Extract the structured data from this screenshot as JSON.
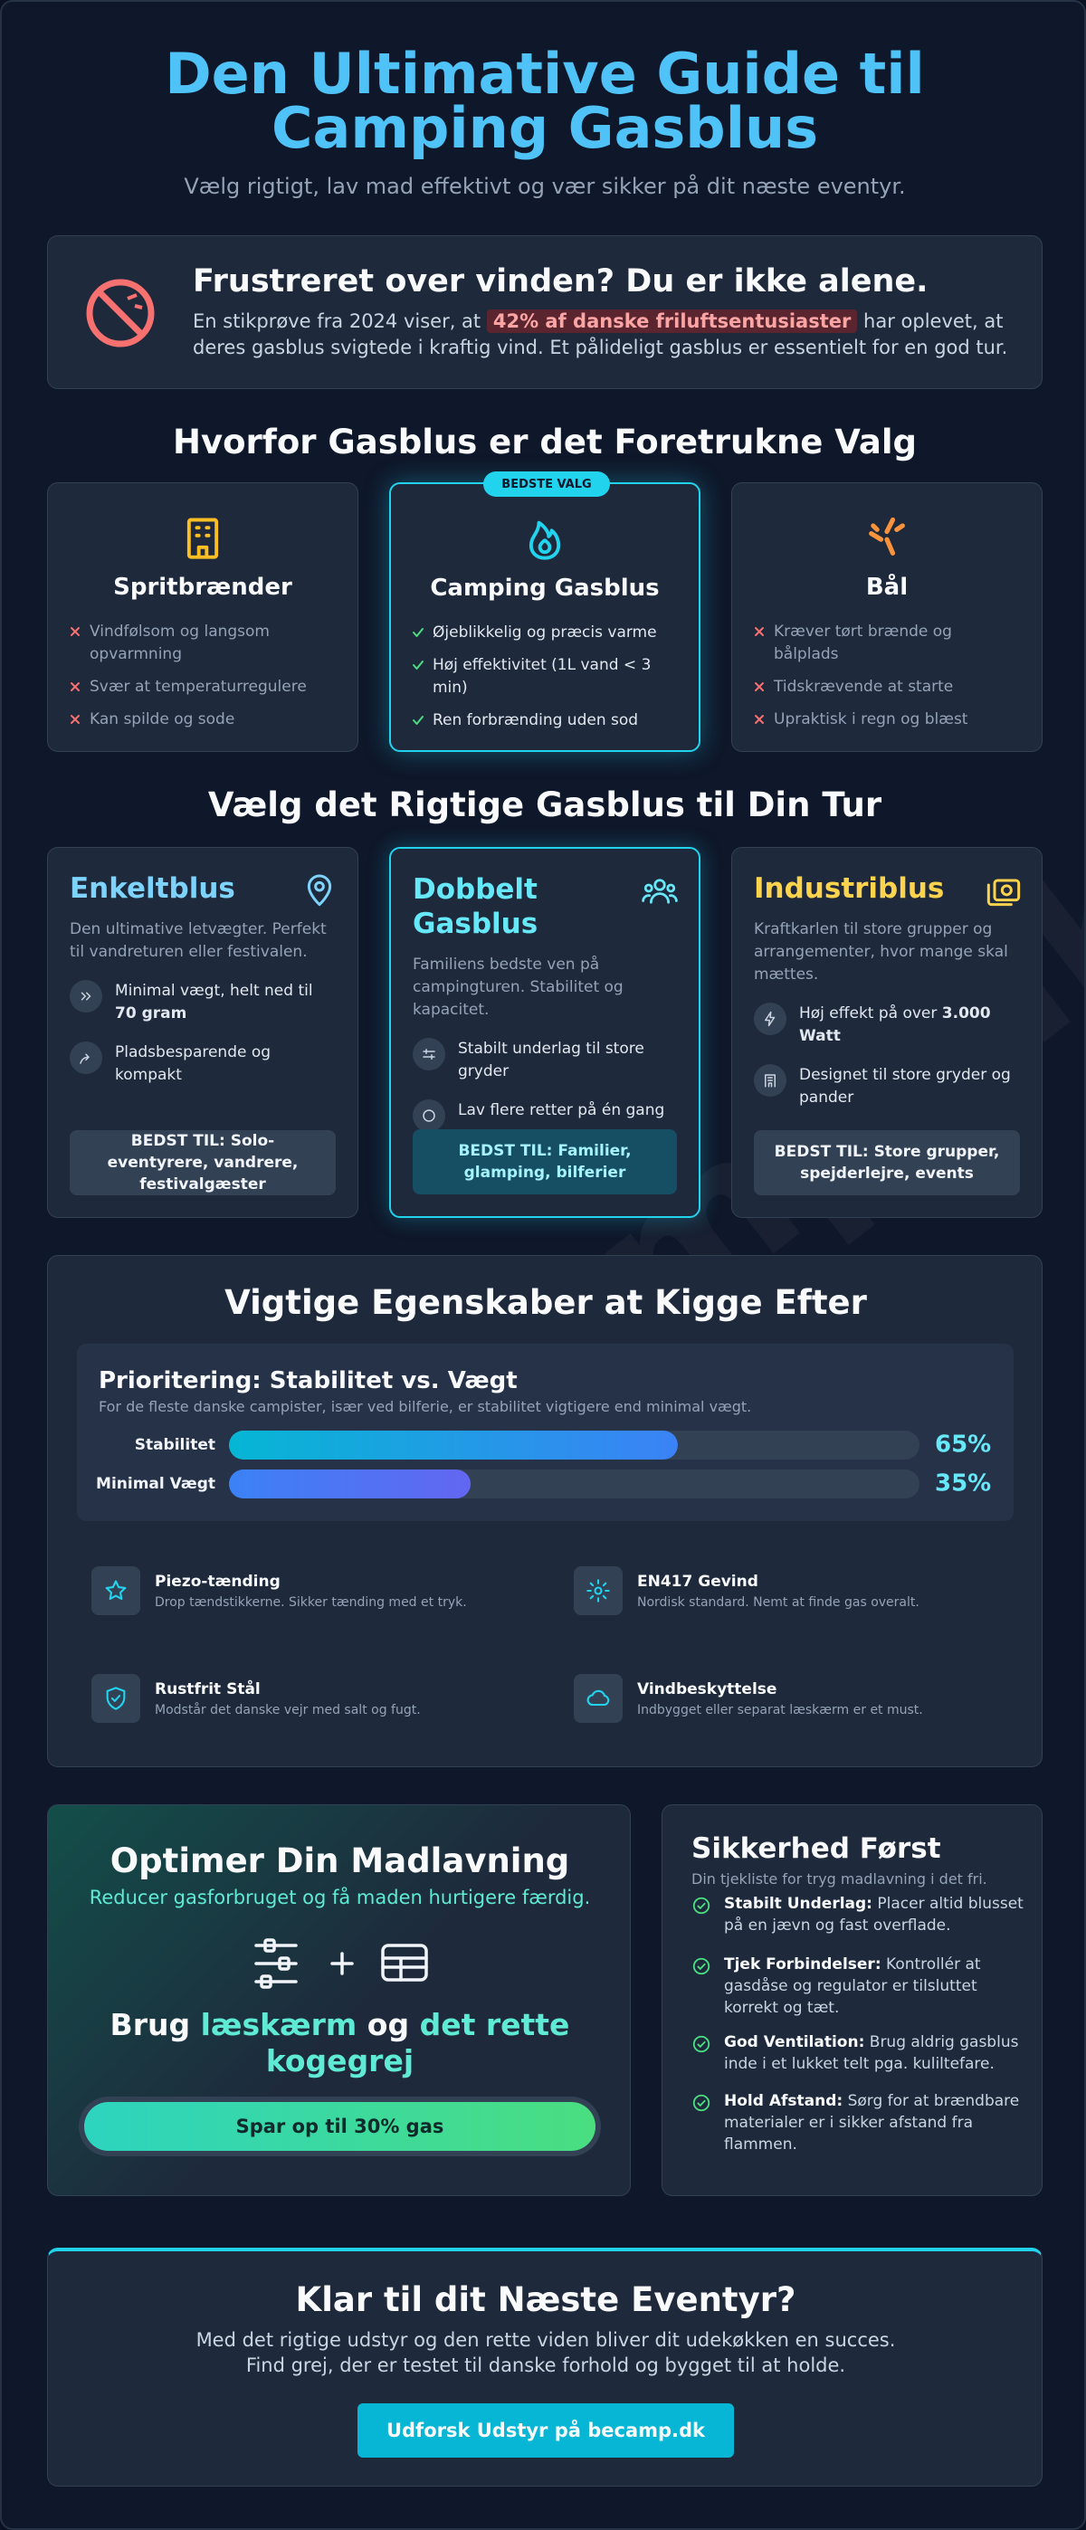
{
  "header": {
    "title": "Den Ultimative Guide til Camping Gasblus",
    "subtitle": "Vælg rigtigt, lav mad effektivt og vær sikker på dit næste eventyr."
  },
  "watermark": "becamp.dk",
  "alert": {
    "title": "Frustreret over vinden? Du er ikke alene.",
    "text_before": "En stikprøve fra 2024 viser, at ",
    "highlight": "42% af danske friluftsentusiaster",
    "text_after": " har oplevet, at deres gasblus svigtede i kraftig vind. Et pålideligt gasblus er essentielt for en god tur."
  },
  "why": {
    "title": "Hvorfor Gasblus er det Foretrukne Valg",
    "badge": "BEDSTE VALG",
    "cards": [
      {
        "title": "Spritbrænder",
        "points": [
          "Vindfølsom og langsom opvarmning",
          "Svær at temperaturregulere",
          "Kan spilde og sode"
        ]
      },
      {
        "title": "Camping Gasblus",
        "points": [
          "Øjeblikkelig og præcis varme",
          "Høj effektivitet (1L vand < 3 min)",
          "Ren forbrænding uden sod"
        ]
      },
      {
        "title": "Bål",
        "points": [
          "Kræver tørt brænde og bålplads",
          "Tidskrævende at starte",
          "Upraktisk i regn og blæst"
        ]
      }
    ]
  },
  "choose": {
    "title": "Vælg det Rigtige Gasblus til Din Tur",
    "cards": [
      {
        "title": "Enkeltblus",
        "text": "Den ultimative letvægter. Perfekt til vandreturen eller festivalen.",
        "features": [
          {
            "text": "Minimal vægt, helt ned til ",
            "bold": "70 gram"
          },
          {
            "text": "Pladsbesparende og kompakt"
          }
        ],
        "best": "BEDST TIL: Solo-eventyrere, vandrere, festivalgæster"
      },
      {
        "title": "Dobbelt Gasblus",
        "text": "Familiens bedste ven på campingturen. Stabilitet og kapacitet.",
        "features": [
          {
            "text": "Stabilt underlag til store gryder"
          },
          {
            "text": "Lav flere retter på én gang"
          }
        ],
        "best": "BEDST TIL: Familier, glamping, bilferier"
      },
      {
        "title": "Industriblus",
        "text": "Kraftkarlen til store grupper og arrangementer, hvor mange skal mættes.",
        "features": [
          {
            "text": "Høj effekt på over ",
            "bold": "3.000 Watt"
          },
          {
            "text": "Designet til store gryder og pander"
          }
        ],
        "best": "BEDST TIL: Store grupper, spejderlejre, events"
      }
    ]
  },
  "features": {
    "title": "Vigtige Egenskaber at Kigge Efter",
    "priority": {
      "title": "Prioritering: Stabilitet vs. Vægt",
      "subtitle": "For de fleste danske campister, især ved bilferie, er stabilitet vigtigere end minimal vægt.",
      "categories": [
        "Stabilitet",
        "Minimal Vægt"
      ],
      "values": [
        65,
        35
      ],
      "value_labels": [
        "65%",
        "35%"
      ],
      "xlim": [
        0,
        100
      ]
    },
    "items": [
      {
        "title": "Piezo-tænding",
        "text": "Drop tændstikkerne. Sikker tænding med et tryk."
      },
      {
        "title": "EN417 Gevind",
        "text": "Nordisk standard. Nemt at finde gas overalt."
      },
      {
        "title": "Rustfrit Stål",
        "text": "Modstår det danske vejr med salt og fugt."
      },
      {
        "title": "Vindbeskyttelse",
        "text": "Indbygget eller separat læskærm er et must."
      }
    ]
  },
  "optimize": {
    "title": "Optimer Din Madlavning",
    "subtitle": "Reducer gasforbruget og få maden hurtigere færdig.",
    "heading": [
      "Brug ",
      "læskærm",
      " og ",
      "det rette kogegrej"
    ],
    "button": "Spar op til 30% gas"
  },
  "safety": {
    "title": "Sikkerhed Først",
    "subtitle": "Din tjekliste for tryg madlavning i det fri.",
    "items": [
      {
        "bold": "Stabilt Underlag:",
        "text": " Placer altid blusset på en jævn og fast overflade."
      },
      {
        "bold": "Tjek Forbindelser:",
        "text": " Kontrollér at gasdåse og regulator er tilsluttet korrekt og tæt."
      },
      {
        "bold": "God Ventilation:",
        "text": " Brug aldrig gasblus inde i et lukket telt pga. kulilte­fare."
      },
      {
        "bold": "Hold Afstand:",
        "text": " Sørg for at brændbare materialer er i sikker afstand fra flammen."
      }
    ]
  },
  "cta": {
    "title": "Klar til dit Næste Eventyr?",
    "lines": [
      "Med det rigtige udstyr og den rette viden bliver dit udekøkken en succes.",
      "Find grej, der er testet til danske forhold og bygget til at holde."
    ],
    "button": "Udforsk Udstyr på becamp.dk"
  }
}
